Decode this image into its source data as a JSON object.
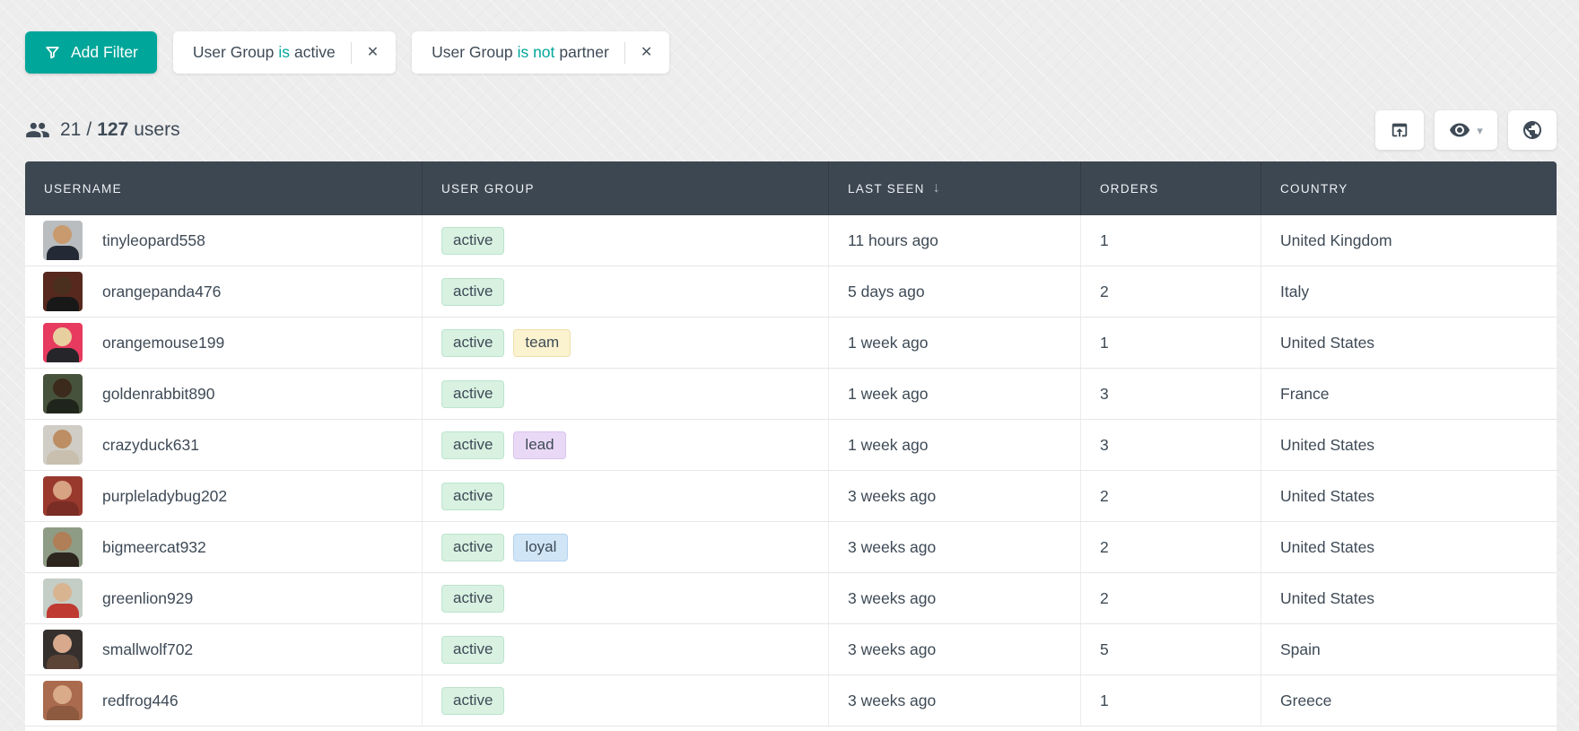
{
  "toolbar": {
    "add_filter_label": "Add Filter",
    "filters": [
      {
        "field": "User Group",
        "operator": "is",
        "value": "active"
      },
      {
        "field": "User Group",
        "operator": "is not",
        "value": "partner"
      }
    ]
  },
  "summary": {
    "shown": "21",
    "separator": "/",
    "total": "127",
    "suffix": "users"
  },
  "actions": {
    "export_icon": "open-in-browser-icon",
    "visibility_icon": "eye-icon",
    "globe_icon": "globe-icon"
  },
  "table": {
    "columns": [
      {
        "label": "USERNAME"
      },
      {
        "label": "USER GROUP"
      },
      {
        "label": "LAST SEEN",
        "sorted": "desc"
      },
      {
        "label": "ORDERS"
      },
      {
        "label": "COUNTRY"
      }
    ],
    "rows": [
      {
        "username": "tinyleopard558",
        "groups": [
          "active"
        ],
        "last_seen": "11 hours ago",
        "orders": "1",
        "country": "United Kingdom",
        "avatar": {
          "bg": "#b9bdbf",
          "skin": "#c99a6d",
          "shirt": "#232a36"
        }
      },
      {
        "username": "orangepanda476",
        "groups": [
          "active"
        ],
        "last_seen": "5 days ago",
        "orders": "2",
        "country": "Italy",
        "avatar": {
          "bg": "#56281e",
          "skin": "#4a2e1e",
          "shirt": "#181818"
        }
      },
      {
        "username": "orangemouse199",
        "groups": [
          "active",
          "team"
        ],
        "last_seen": "1 week ago",
        "orders": "1",
        "country": "United States",
        "avatar": {
          "bg": "#e73a5e",
          "skin": "#e8cfa0",
          "shirt": "#26262a"
        }
      },
      {
        "username": "goldenrabbit890",
        "groups": [
          "active"
        ],
        "last_seen": "1 week ago",
        "orders": "3",
        "country": "France",
        "avatar": {
          "bg": "#47523c",
          "skin": "#3c2a1c",
          "shirt": "#20251c"
        }
      },
      {
        "username": "crazyduck631",
        "groups": [
          "active",
          "lead"
        ],
        "last_seen": "1 week ago",
        "orders": "3",
        "country": "United States",
        "avatar": {
          "bg": "#cfcdc5",
          "skin": "#bd8e63",
          "shirt": "#c8bfae"
        }
      },
      {
        "username": "purpleladybug202",
        "groups": [
          "active"
        ],
        "last_seen": "3 weeks ago",
        "orders": "2",
        "country": "United States",
        "avatar": {
          "bg": "#99392e",
          "skin": "#d8a383",
          "shirt": "#7a2d24"
        }
      },
      {
        "username": "bigmeercat932",
        "groups": [
          "active",
          "loyal"
        ],
        "last_seen": "3 weeks ago",
        "orders": "2",
        "country": "United States",
        "avatar": {
          "bg": "#8f9c85",
          "skin": "#b07e57",
          "shirt": "#2c261f"
        }
      },
      {
        "username": "greenlion929",
        "groups": [
          "active"
        ],
        "last_seen": "3 weeks ago",
        "orders": "2",
        "country": "United States",
        "avatar": {
          "bg": "#c4cdc6",
          "skin": "#d9b491",
          "shirt": "#bf3a31"
        }
      },
      {
        "username": "smallwolf702",
        "groups": [
          "active"
        ],
        "last_seen": "3 weeks ago",
        "orders": "5",
        "country": "Spain",
        "avatar": {
          "bg": "#35302e",
          "skin": "#d8a98c",
          "shirt": "#5b4336"
        }
      },
      {
        "username": "redfrog446",
        "groups": [
          "active"
        ],
        "last_seen": "3 weeks ago",
        "orders": "1",
        "country": "Greece",
        "avatar": {
          "bg": "#a96a4e",
          "skin": "#d9ab89",
          "shirt": "#8d5a40"
        }
      }
    ]
  },
  "badge_colors": {
    "active": {
      "bg": "#d8f1e1",
      "border": "#bce4cd"
    },
    "team": {
      "bg": "#fbf2cf",
      "border": "#eee0ad"
    },
    "lead": {
      "bg": "#ead9f6",
      "border": "#d9c3ee"
    },
    "loyal": {
      "bg": "#d0e6f7",
      "border": "#b5d3ee"
    }
  },
  "colors": {
    "accent_teal": "#00a69a",
    "header_bg": "#3d4752",
    "text": "#3e4a56",
    "page_bg": "#ededed"
  },
  "icons": {
    "close": "✕",
    "sort_desc": "↓",
    "caret_down": "▾"
  }
}
